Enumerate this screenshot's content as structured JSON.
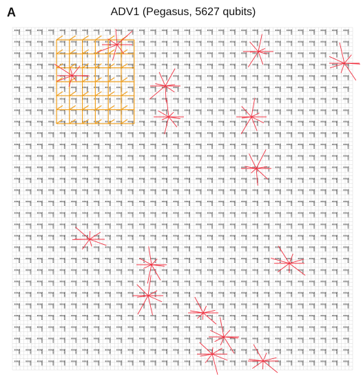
{
  "panel_label": "A",
  "title": "ADV1 (Pegasus, 5627 qubits)"
}
